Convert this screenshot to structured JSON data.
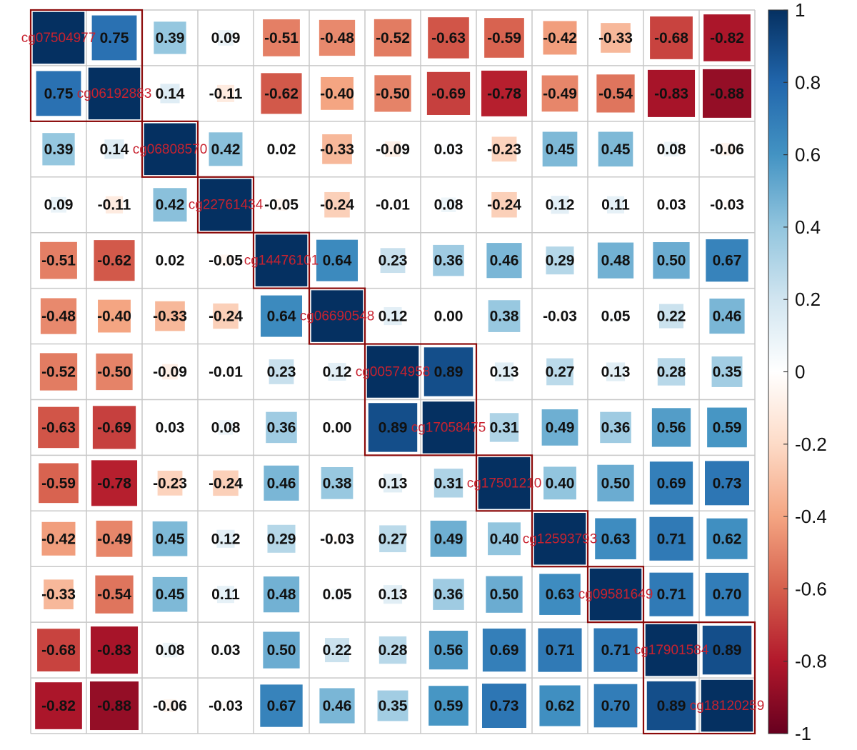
{
  "chart_data": {
    "type": "heatmap",
    "subtype": "correlation-matrix",
    "title": "",
    "variables": [
      "cg07504977",
      "cg06192883",
      "cg06808570",
      "cg22761434",
      "cg14476101",
      "cg06690548",
      "cg00574958",
      "cg17058475",
      "cg17501210",
      "cg12593793",
      "cg09581649",
      "cg17901584",
      "cg18120259"
    ],
    "matrix": [
      [
        1.0,
        0.75,
        0.39,
        0.09,
        -0.51,
        -0.48,
        -0.52,
        -0.63,
        -0.59,
        -0.42,
        -0.33,
        -0.68,
        -0.82
      ],
      [
        0.75,
        1.0,
        0.14,
        -0.11,
        -0.62,
        -0.4,
        -0.5,
        -0.69,
        -0.78,
        -0.49,
        -0.54,
        -0.83,
        -0.88
      ],
      [
        0.39,
        0.14,
        1.0,
        0.42,
        0.02,
        -0.33,
        -0.09,
        0.03,
        -0.23,
        0.45,
        0.45,
        0.08,
        -0.06
      ],
      [
        0.09,
        -0.11,
        0.42,
        1.0,
        -0.05,
        -0.24,
        -0.01,
        0.08,
        -0.24,
        0.12,
        0.11,
        0.03,
        -0.03
      ],
      [
        -0.51,
        -0.62,
        0.02,
        -0.05,
        1.0,
        0.64,
        0.23,
        0.36,
        0.46,
        0.29,
        0.48,
        0.5,
        0.67
      ],
      [
        -0.48,
        -0.4,
        -0.33,
        -0.24,
        0.64,
        1.0,
        0.12,
        0.0,
        0.38,
        -0.03,
        0.05,
        0.22,
        0.46
      ],
      [
        -0.52,
        -0.5,
        -0.09,
        -0.01,
        0.23,
        0.12,
        1.0,
        0.89,
        0.13,
        0.27,
        0.13,
        0.28,
        0.35
      ],
      [
        -0.63,
        -0.69,
        0.03,
        0.08,
        0.36,
        0.0,
        0.89,
        1.0,
        0.31,
        0.49,
        0.36,
        0.56,
        0.59
      ],
      [
        -0.59,
        -0.78,
        -0.23,
        -0.24,
        0.46,
        0.38,
        0.13,
        0.31,
        1.0,
        0.4,
        0.5,
        0.69,
        0.73
      ],
      [
        -0.42,
        -0.49,
        0.45,
        0.12,
        0.29,
        -0.03,
        0.27,
        0.49,
        0.4,
        1.0,
        0.63,
        0.71,
        0.62
      ],
      [
        -0.33,
        -0.54,
        0.45,
        0.11,
        0.48,
        0.05,
        0.13,
        0.36,
        0.5,
        0.63,
        1.0,
        0.71,
        0.7
      ],
      [
        -0.68,
        -0.83,
        0.08,
        0.03,
        0.5,
        0.22,
        0.28,
        0.56,
        0.69,
        0.71,
        0.71,
        1.0,
        0.89
      ],
      [
        -0.82,
        -0.88,
        -0.06,
        -0.03,
        0.67,
        0.46,
        0.35,
        0.59,
        0.73,
        0.62,
        0.7,
        0.89,
        1.0
      ]
    ],
    "clusters": [
      [
        0,
        1
      ],
      [
        2
      ],
      [
        3
      ],
      [
        4
      ],
      [
        5
      ],
      [
        6,
        7
      ],
      [
        8
      ],
      [
        9
      ],
      [
        10
      ],
      [
        11,
        12
      ]
    ],
    "colorbar": {
      "range": [
        -1,
        1
      ],
      "ticks": [
        1,
        0.8,
        0.6,
        0.4,
        0.2,
        0,
        -0.2,
        -0.4,
        -0.6,
        -0.8,
        -1
      ],
      "tick_labels": [
        "1",
        "0.8",
        "0.6",
        "0.4",
        "0.2",
        "0",
        "-0.2",
        "-0.4",
        "-0.6",
        "-0.8",
        "-1"
      ]
    },
    "colors": {
      "positive_strong": "#053061",
      "positive_mid": "#4393c3",
      "neutral": "#ffffff",
      "negative_mid": "#d6604d",
      "negative_strong": "#67001f",
      "grid": "#c8c8c8",
      "cluster_box": "#8b0a0a",
      "label": "#c8222f"
    },
    "value_format": "2 decimal places",
    "diagonal": "variable names instead of values"
  }
}
